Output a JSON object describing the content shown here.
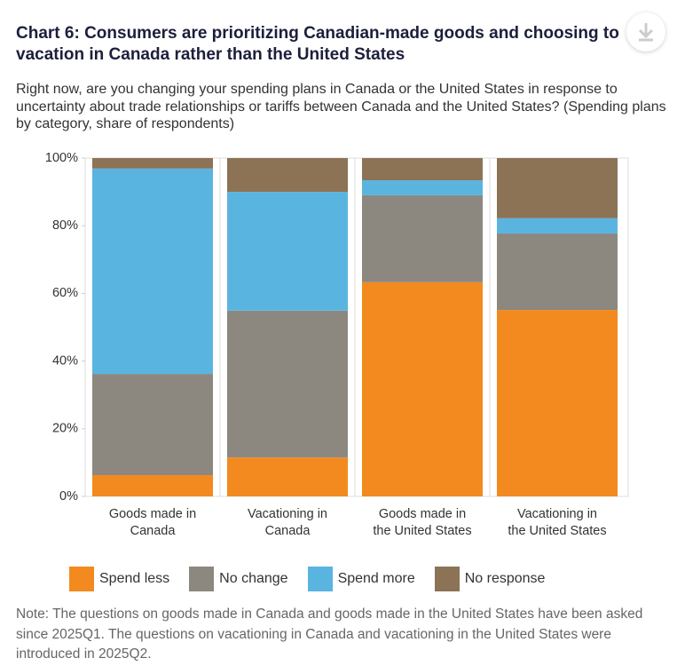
{
  "chart_data": {
    "type": "stacked-bar",
    "title": "Chart 6: Consumers are prioritizing Canadian-made goods and choosing to vacation in Canada rather than the United States",
    "subtitle": "Right now, are you changing your spending plans in Canada or the United States in response to uncertainty about trade relationships or tariffs between Canada and the United States? (Spending plans by category, share of respondents)",
    "categories": [
      [
        "Goods made in",
        "Canada"
      ],
      [
        "Vacationing in",
        "Canada"
      ],
      [
        "Goods made in",
        "the United States"
      ],
      [
        "Vacationing in",
        "the United States"
      ]
    ],
    "series": [
      {
        "name": "Spend less",
        "color": "#f38a1f",
        "values": [
          6.3,
          11.5,
          63.3,
          55.1
        ]
      },
      {
        "name": "No change",
        "color": "#8c8880",
        "values": [
          29.9,
          43.4,
          25.7,
          22.6
        ]
      },
      {
        "name": "Spend more",
        "color": "#5ab4e0",
        "values": [
          60.7,
          35.1,
          4.4,
          4.5
        ]
      },
      {
        "name": "No response",
        "color": "#8c7356",
        "values": [
          3.1,
          10.0,
          6.6,
          17.8
        ]
      }
    ],
    "ylim": [
      0,
      100
    ],
    "yticks": [
      {
        "value": 0,
        "label": "0%"
      },
      {
        "value": 20,
        "label": "20%"
      },
      {
        "value": 40,
        "label": "40%"
      },
      {
        "value": 60,
        "label": "60%"
      },
      {
        "value": 80,
        "label": "80%"
      },
      {
        "value": 100,
        "label": "100%"
      }
    ],
    "note": "Note: The questions on goods made in Canada and goods made in the United States have been asked since 2025Q1. The questions on vacationing in Canada and vacationing in the United States were introduced in 2025Q2."
  }
}
